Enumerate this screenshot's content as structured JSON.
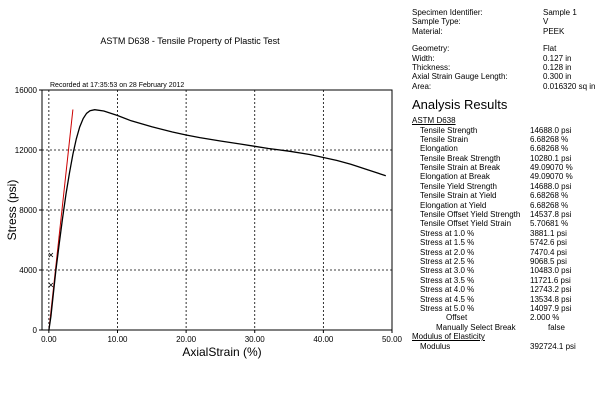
{
  "chart_title": "ASTM D638 - Tensile Property of Plastic Test",
  "recorded_note": "Recorded at 17:35:53 on 28 February 2012",
  "chart_data": {
    "type": "line",
    "title": "ASTM D638 - Tensile Property of Plastic Test",
    "xlabel": "AxialStrain (%)",
    "ylabel": "Stress (psi)",
    "xlim": [
      -1,
      50
    ],
    "ylim": [
      0,
      16000
    ],
    "xticks": [
      0,
      10,
      20,
      30,
      40,
      50
    ],
    "xtick_labels": [
      "0.00",
      "10.00",
      "20.00",
      "30.00",
      "40.00",
      "50.00"
    ],
    "yticks": [
      0,
      4000,
      8000,
      12000,
      16000
    ],
    "ytick_labels": [
      "0",
      "4000",
      "8000",
      "12000",
      "16000"
    ],
    "grid": true,
    "colors": {
      "curve": "#000000",
      "modulus_line": "#cc0000",
      "grid": "#000000"
    },
    "series": [
      {
        "x": [
          0,
          0.3,
          0.6,
          1.0,
          1.5,
          2.0,
          2.5,
          3.0,
          3.5,
          4.0,
          4.5,
          5.0,
          5.5,
          6.0,
          6.68,
          8,
          10,
          12,
          15,
          18,
          20,
          22,
          25,
          28,
          30,
          32,
          35,
          38,
          40,
          42,
          44,
          45,
          46,
          47,
          48,
          49.09
        ],
        "y": [
          0,
          900,
          2200,
          3881,
          5743,
          7470,
          9069,
          10483,
          11722,
          12743,
          13535,
          14098,
          14450,
          14620,
          14688,
          14600,
          14300,
          13950,
          13550,
          13200,
          13000,
          12830,
          12600,
          12390,
          12250,
          12100,
          11920,
          11700,
          11500,
          11300,
          11050,
          10900,
          10750,
          10600,
          10450,
          10280
        ]
      },
      {
        "x": [
          0,
          3.5
        ],
        "y": [
          0,
          14700
        ]
      }
    ],
    "markers": [
      {
        "x": 0.3,
        "y": 5000
      },
      {
        "x": 0.3,
        "y": 3000
      }
    ]
  },
  "specimen": [
    {
      "label": "Specimen Identifier:",
      "value": "Sample 1"
    },
    {
      "label": "Sample Type:",
      "value": "V"
    },
    {
      "label": "Material:",
      "value": "PEEK"
    }
  ],
  "geometry": [
    {
      "label": "Geometry:",
      "value": "Flat"
    },
    {
      "label": "Width:",
      "value": "0.127 in"
    },
    {
      "label": "Thickness:",
      "value": "0.128 in"
    },
    {
      "label": "Axial Strain Gauge Length:",
      "value": "0.300 in"
    },
    {
      "label": "Area:",
      "value": "0.016320 sq in"
    }
  ],
  "analysis_title": "Analysis Results",
  "astm_header": "ASTM D638",
  "results": [
    {
      "label": "Tensile Strength",
      "value": "14688.0 psi"
    },
    {
      "label": "Tensile Strain",
      "value": "6.68268 %"
    },
    {
      "label": "Elongation",
      "value": "6.68268 %"
    },
    {
      "label": "Tensile Break Strength",
      "value": "10280.1 psi"
    },
    {
      "label": "Tensile Strain at Break",
      "value": "49.09070 %"
    },
    {
      "label": "Elongation at Break",
      "value": "49.09070 %"
    },
    {
      "label": "Tensile Yield Strength",
      "value": "14688.0 psi"
    },
    {
      "label": "Tensile Strain at Yield",
      "value": "6.68268 %"
    },
    {
      "label": "Elongation at Yield",
      "value": "6.68268 %"
    },
    {
      "label": "Tensile Offset Yield Strength",
      "value": "14537.8 psi"
    },
    {
      "label": "Tensile Offset Yield Strain",
      "value": "5.70681 %"
    },
    {
      "label": "Stress at 1.0 %",
      "value": "3881.1 psi"
    },
    {
      "label": "Stress at 1.5 %",
      "value": "5742.6 psi"
    },
    {
      "label": "Stress at 2.0 %",
      "value": "7470.4 psi"
    },
    {
      "label": "Stress at 2.5 %",
      "value": "9068.5 psi"
    },
    {
      "label": "Stress at 3.0 %",
      "value": "10483.0 psi"
    },
    {
      "label": "Stress at 3.5 %",
      "value": "11721.6 psi"
    },
    {
      "label": "Stress at 4.0 %",
      "value": "12743.2 psi"
    },
    {
      "label": "Stress at 4.5 %",
      "value": "13534.8 psi"
    },
    {
      "label": "Stress at 5.0 %",
      "value": "14097.9 psi"
    }
  ],
  "offset": {
    "label": "Offset",
    "value": "2.000 %"
  },
  "manual_break": {
    "label": "Manually Select Break",
    "value": "false"
  },
  "modulus_header": "Modulus of Elasticity",
  "modulus": {
    "label": "Modulus",
    "value": "392724.1 psi"
  }
}
